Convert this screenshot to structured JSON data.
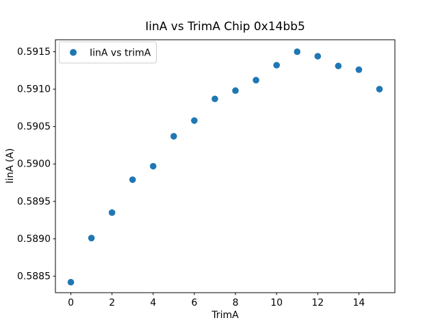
{
  "figure": {
    "background": "#ffffff",
    "spine_color": "#000000"
  },
  "chart_data": {
    "type": "scatter",
    "title": "IinA vs TrimA Chip 0x14bb5",
    "xlabel": "TrimA",
    "ylabel": "IinA (A)",
    "legend": {
      "label": "IinA vs trimA",
      "position": "upper left"
    },
    "marker_color": "#1f77b4",
    "marker_radius": 4.8,
    "x": [
      0,
      1,
      2,
      3,
      4,
      5,
      6,
      7,
      8,
      9,
      10,
      11,
      12,
      13,
      14,
      15
    ],
    "y": [
      0.58842,
      0.58901,
      0.58935,
      0.58979,
      0.58997,
      0.59037,
      0.59058,
      0.59087,
      0.59098,
      0.59112,
      0.59132,
      0.5915,
      0.59144,
      0.59131,
      0.59126,
      0.591
    ],
    "xlim": [
      -0.75,
      15.75
    ],
    "ylim": [
      0.58828,
      0.59166
    ],
    "xticks": [
      0,
      2,
      4,
      6,
      8,
      10,
      12,
      14
    ],
    "xtick_labels": [
      "0",
      "2",
      "4",
      "6",
      "8",
      "10",
      "12",
      "14"
    ],
    "yticks": [
      0.5885,
      0.589,
      0.5895,
      0.59,
      0.5905,
      0.591,
      0.5915
    ],
    "ytick_labels": [
      "0.5885",
      "0.5890",
      "0.5895",
      "0.5900",
      "0.5905",
      "0.5910",
      "0.5915"
    ],
    "grid": false
  }
}
